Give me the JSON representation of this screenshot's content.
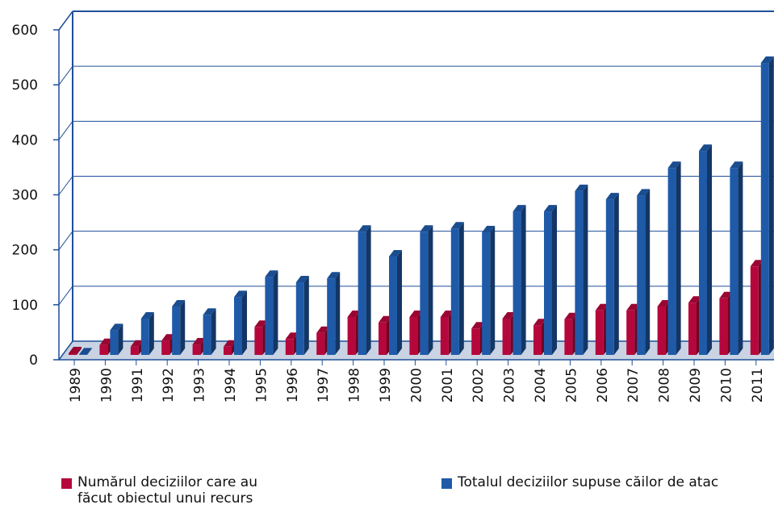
{
  "chart_data": {
    "type": "bar3d",
    "categories": [
      "1989",
      "1990",
      "1991",
      "1992",
      "1993",
      "1994",
      "1995",
      "1996",
      "1997",
      "1998",
      "1999",
      "2000",
      "2001",
      "2002",
      "2003",
      "2004",
      "2005",
      "2006",
      "2007",
      "2008",
      "2009",
      "2010",
      "2011"
    ],
    "series": [
      {
        "name": "Numărul deciziilor care au făcut obiectul unui recurs",
        "color": "#b5073b",
        "values": [
          3,
          18,
          15,
          26,
          19,
          15,
          51,
          29,
          40,
          69,
          59,
          69,
          69,
          48,
          66,
          54,
          65,
          81,
          81,
          88,
          95,
          103,
          161
        ]
      },
      {
        "name": "Totalul deciziilor supuse căilor de atac",
        "color": "#1f5aa8",
        "values": [
          1,
          45,
          66,
          88,
          73,
          105,
          142,
          132,
          139,
          224,
          179,
          224,
          230,
          223,
          261,
          261,
          298,
          283,
          290,
          340,
          371,
          340,
          531
        ]
      }
    ],
    "ylim": [
      0,
      600
    ],
    "yticks": [
      0,
      100,
      200,
      300,
      400,
      500,
      600
    ],
    "grid": true
  }
}
